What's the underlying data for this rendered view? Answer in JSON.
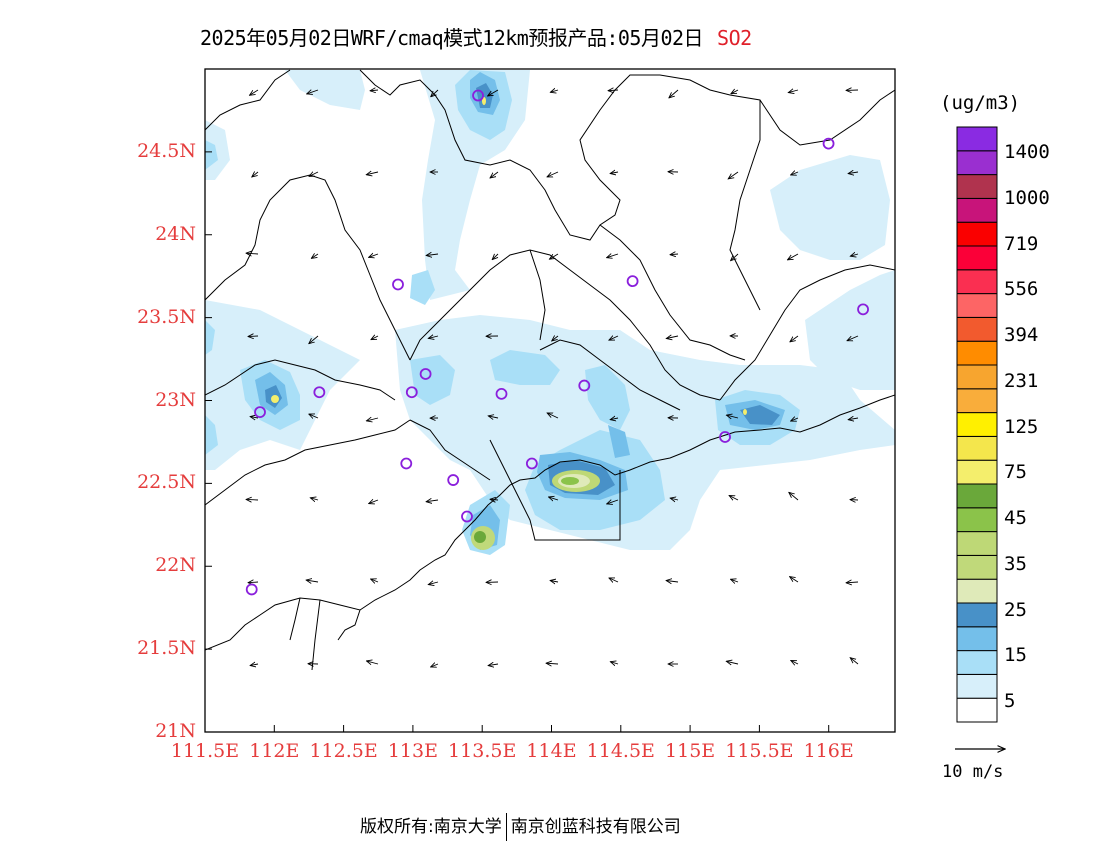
{
  "title": {
    "main": "2025年05月02日WRF/cmaq模式12km预报产品:05月02日",
    "pollutant": "SO2"
  },
  "axes": {
    "lat_labels": [
      "24.5N",
      "24N",
      "23.5N",
      "23N",
      "22.5N",
      "22N",
      "21.5N",
      "21N"
    ],
    "lon_labels": [
      "111.5E",
      "112E",
      "112.5E",
      "113E",
      "113.5E",
      "114E",
      "114.5E",
      "115E",
      "115.5E",
      "116E"
    ],
    "lat_range": [
      21.0,
      25.0
    ],
    "lon_range": [
      111.5,
      116.5
    ]
  },
  "legend": {
    "unit": "(ug/m3)",
    "labels": [
      "1400",
      "1000",
      "719",
      "556",
      "394",
      "231",
      "125",
      "75",
      "45",
      "35",
      "25",
      "15",
      "5"
    ],
    "colors": [
      "#ffffff",
      "#d7effa",
      "#a9dff7",
      "#74bfea",
      "#4891c8",
      "#dfeab9",
      "#c0d97a",
      "#bed876",
      "#8bc34a",
      "#6aa83a",
      "#f4ee6c",
      "#f4e64c",
      "#fff000",
      "#f9ad3b",
      "#f7a52f",
      "#ff8c00",
      "#f25a2e",
      "#fd6565",
      "#fa2f51",
      "#fb0038",
      "#fa0000",
      "#c8147a",
      "#b0334e",
      "#9a2fd0",
      "#8a2be2"
    ],
    "wind_reference": "10 m/s"
  },
  "overlay_colors": {
    "site_marker": "#8a1fdc",
    "boundary": "#000000",
    "axis_text": "#e53d3d"
  },
  "footer": {
    "copyright_left": "版权所有:南京大学",
    "copyright_right": "南京创蓝科技有限公司"
  },
  "map_data": {
    "stations": [
      [
        113.58,
        24.84
      ],
      [
        116.12,
        24.55
      ],
      [
        113.0,
        23.7
      ],
      [
        114.7,
        23.72
      ],
      [
        116.37,
        23.55
      ],
      [
        113.2,
        23.16
      ],
      [
        113.1,
        23.05
      ],
      [
        112.43,
        23.05
      ],
      [
        113.75,
        23.04
      ],
      [
        114.35,
        23.09
      ],
      [
        112.0,
        22.93
      ],
      [
        115.37,
        22.78
      ],
      [
        113.06,
        22.62
      ],
      [
        113.4,
        22.52
      ],
      [
        113.97,
        22.62
      ],
      [
        113.5,
        22.3
      ],
      [
        111.94,
        21.86
      ]
    ],
    "plumes": [
      {
        "lon": 113.5,
        "lat": 24.85,
        "level": 3
      },
      {
        "lon": 112.02,
        "lat": 23.01,
        "level": 3
      },
      {
        "lon": 114.1,
        "lat": 22.55,
        "level": 6
      },
      {
        "lon": 113.5,
        "lat": 22.17,
        "level": 5
      },
      {
        "lon": 115.45,
        "lat": 22.87,
        "level": 3
      },
      {
        "lon": 111.52,
        "lat": 24.5,
        "level": 2
      },
      {
        "lon": 111.52,
        "lat": 22.85,
        "level": 2
      }
    ]
  }
}
